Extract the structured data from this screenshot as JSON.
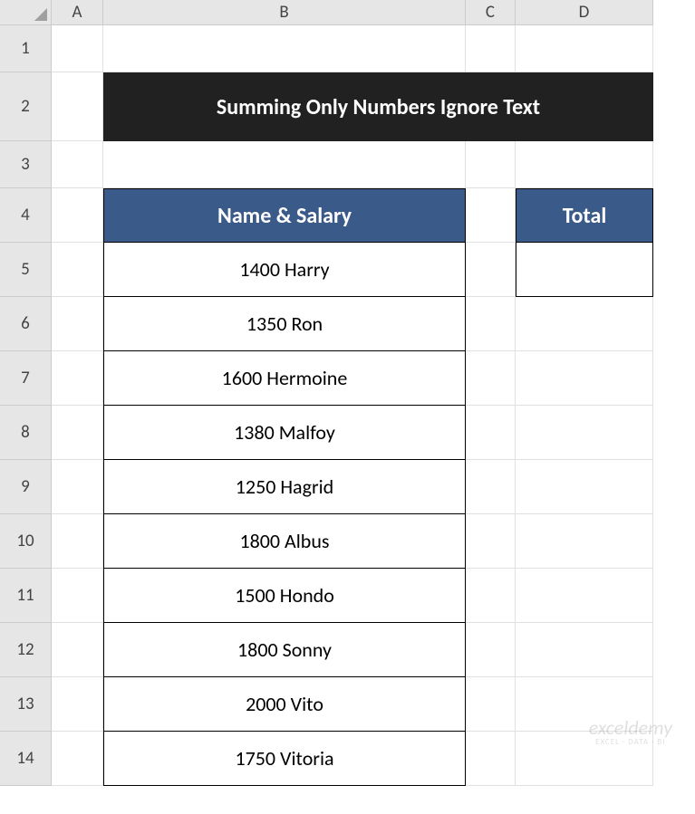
{
  "columns": [
    "A",
    "B",
    "C",
    "D"
  ],
  "rows": [
    "1",
    "2",
    "3",
    "4",
    "5",
    "6",
    "7",
    "8",
    "9",
    "10",
    "11",
    "12",
    "13",
    "14"
  ],
  "title": "Summing Only Numbers Ignore Text",
  "headers": {
    "name_salary": "Name & Salary",
    "total": "Total"
  },
  "data": [
    "1400 Harry",
    "1350 Ron",
    "1600 Hermoine",
    "1380 Malfoy",
    "1250 Hagrid",
    "1800 Albus",
    "1500 Hondo",
    "1800 Sonny",
    "2000 Vito",
    "1750 Vitoria"
  ],
  "total_value": "",
  "colors": {
    "header_bg": "#3a5a8a",
    "title_bg": "#212121",
    "grid_hdr_bg": "#e6e6e6",
    "border": "#000000"
  },
  "watermark": {
    "main": "exceldemy",
    "sub": "EXCEL · DATA · BI"
  }
}
